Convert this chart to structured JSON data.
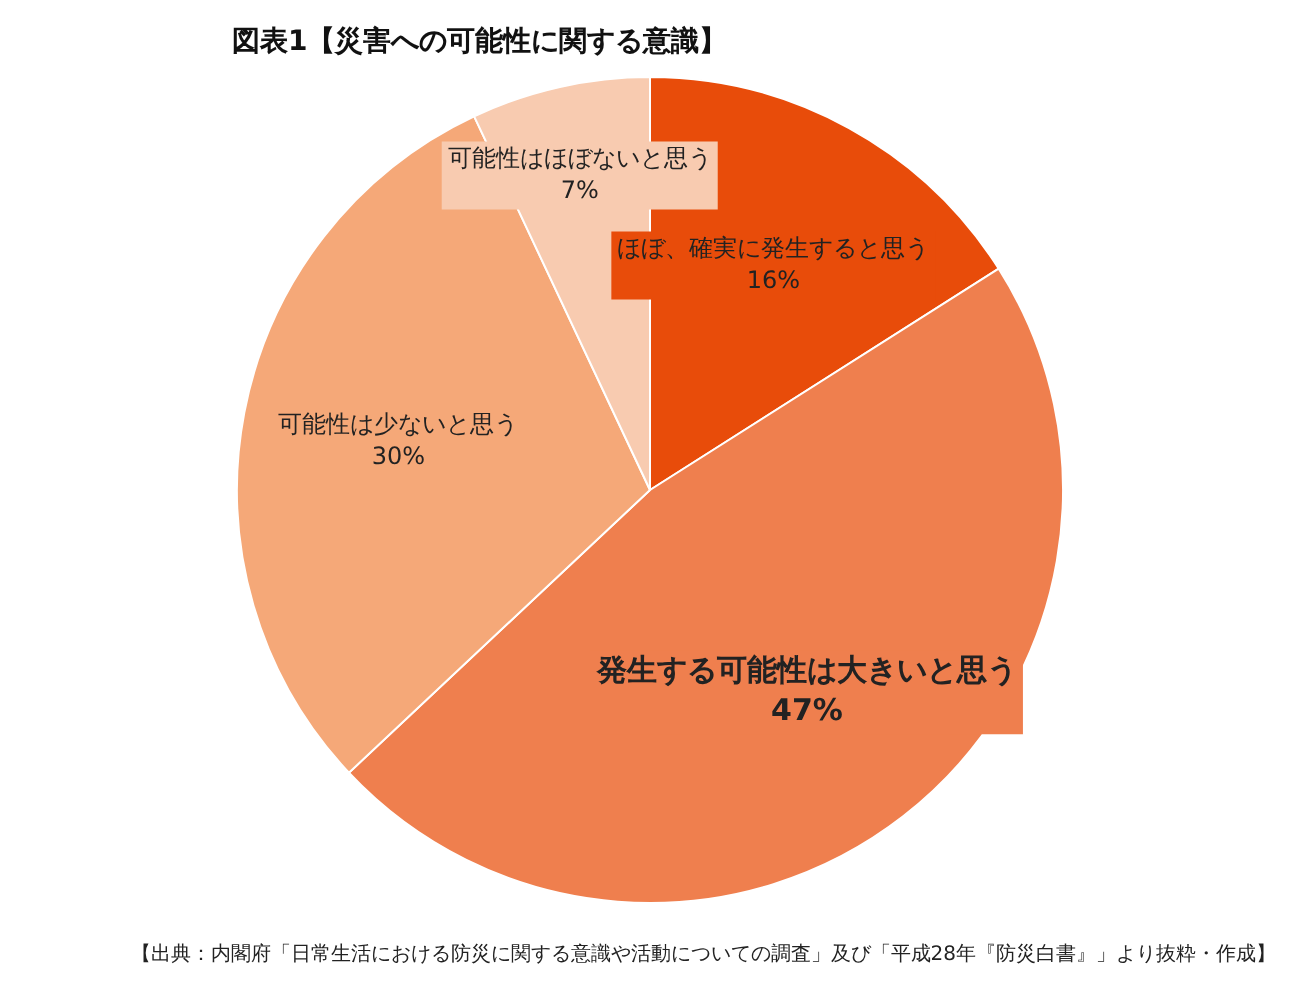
{
  "chart_data": {
    "type": "pie",
    "title": "図表1【災害への可能性に関する意識】",
    "categories": [
      "ほぼ、確実に発生すると思う",
      "発生する可能性は大きいと思う",
      "可能性は少ないと思う",
      "可能性はほぼないと思う"
    ],
    "values": [
      16,
      47,
      30,
      7
    ],
    "colors": [
      "#e84c0a",
      "#ef7f4e",
      "#f5a878",
      "#f8cbb0"
    ],
    "value_labels": [
      "16%",
      "47%",
      "30%",
      "7%"
    ],
    "legend": false,
    "annotations": [
      "【出典：内閣府「日常生活における防災に関する意識や活動についての調査」及び「平成28年『防災白書』」より抜粋・作成】"
    ]
  }
}
